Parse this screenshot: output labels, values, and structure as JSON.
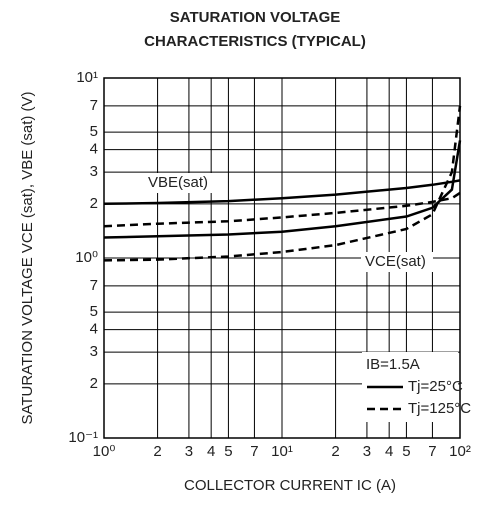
{
  "chart_data": {
    "type": "line",
    "title": [
      "SATURATION VOLTAGE",
      "CHARACTERISTICS (TYPICAL)"
    ],
    "x_label": "COLLECTOR CURRENT   IC (A)",
    "y_label": "SATURATION VOLTAGE   VCE (sat), VBE (sat) (V)",
    "log_x": true,
    "log_y": true,
    "grid": true,
    "x": [
      1,
      2,
      5,
      10,
      20,
      50,
      70,
      90,
      100
    ],
    "series": [
      {
        "name": "Tj=25°C",
        "color": "#000000",
        "dashed": false,
        "values": [
          2.0,
          2.02,
          2.07,
          2.15,
          2.25,
          2.45,
          2.55,
          2.65,
          2.7
        ]
      },
      {
        "name": "Tj=125°C",
        "color": "#000000",
        "dashed": true,
        "values": [
          1.5,
          1.55,
          1.6,
          1.68,
          1.78,
          1.95,
          2.05,
          2.15,
          2.3
        ]
      },
      {
        "name": "Tj=25°C",
        "color": "#000000",
        "dashed": false,
        "values": [
          1.3,
          1.32,
          1.35,
          1.4,
          1.5,
          1.7,
          1.9,
          2.4,
          4.5
        ]
      },
      {
        "name": "Tj=125°C",
        "color": "#000000",
        "dashed": true,
        "values": [
          0.97,
          0.98,
          1.02,
          1.08,
          1.18,
          1.45,
          1.75,
          3.0,
          7
        ]
      }
    ],
    "annotations": [
      "VBE(sat)",
      "VCE(sat)"
    ],
    "legend_title": "IB=1.5A",
    "xlim": [
      1,
      100
    ],
    "xticks": [
      {
        "value": 1,
        "label": "10⁰"
      },
      2,
      3,
      4,
      5,
      7,
      {
        "value": 10,
        "label": "10¹"
      },
      {
        "value": 20,
        "label": "2"
      },
      {
        "value": 30,
        "label": "3"
      },
      {
        "value": 40,
        "label": "4"
      },
      {
        "value": 50,
        "label": "5"
      },
      {
        "value": 70,
        "label": "7"
      },
      {
        "value": 100,
        "label": "10²"
      }
    ],
    "ylim": [
      0.1,
      10
    ],
    "yticks": [
      {
        "value": 0.1,
        "label": "10⁻¹"
      },
      {
        "value": 0.2,
        "label": "2"
      },
      {
        "value": 0.3,
        "label": "3"
      },
      {
        "value": 0.4,
        "label": "4"
      },
      {
        "value": 0.5,
        "label": "5"
      },
      {
        "value": 0.7,
        "label": "7"
      },
      {
        "value": 1,
        "label": "10⁰"
      },
      2,
      3,
      4,
      5,
      7,
      {
        "value": 10,
        "label": "10¹"
      }
    ]
  }
}
